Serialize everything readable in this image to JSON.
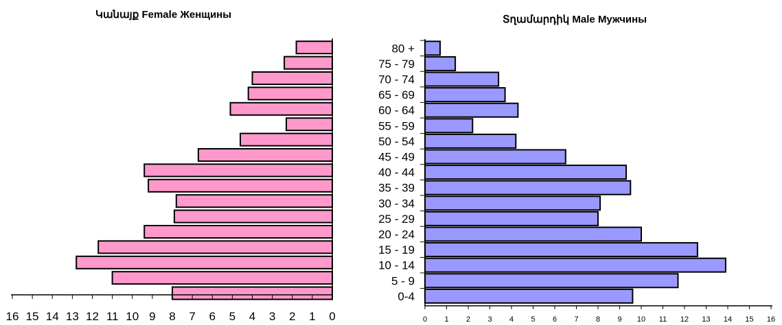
{
  "chart_data": [
    {
      "type": "bar",
      "orientation": "horizontal",
      "title": "Կանայք Female  Женщины",
      "categories": [
        "80 +",
        "75 - 79",
        "70 - 74",
        "65 - 69",
        "60 - 64",
        "55 - 59",
        "50 - 54",
        "45 - 49",
        "40 - 44",
        "35 - 39",
        "30 - 34",
        "25 - 29",
        "20 - 24",
        "15 - 19",
        "10 - 14",
        "5 - 9",
        "0-4"
      ],
      "values": [
        1.8,
        2.4,
        4.0,
        4.2,
        5.1,
        2.3,
        4.6,
        6.7,
        9.4,
        9.2,
        7.8,
        7.9,
        9.4,
        11.7,
        12.8,
        11.0,
        8.0
      ],
      "xlim": [
        0,
        16
      ],
      "x_direction": "reversed",
      "ticks": [
        "16",
        "15",
        "14",
        "13",
        "12",
        "11",
        "10",
        "9",
        "8",
        "7",
        "6",
        "5",
        "4",
        "3",
        "2",
        "1",
        "0"
      ],
      "bar_color": "#ff99cc"
    },
    {
      "type": "bar",
      "orientation": "horizontal",
      "title": "Տղամարդիկ Male  Мужчины",
      "categories": [
        "80 +",
        "75 - 79",
        "70 - 74",
        "65 - 69",
        "60 - 64",
        "55 - 59",
        "50 - 54",
        "45 - 49",
        "40 - 44",
        "35 - 39",
        "30 - 34",
        "25 - 29",
        "20 - 24",
        "15 - 19",
        "10 - 14",
        "5 - 9",
        "0-4"
      ],
      "values": [
        0.7,
        1.4,
        3.4,
        3.7,
        4.3,
        2.2,
        4.2,
        6.5,
        9.3,
        9.5,
        8.1,
        8.0,
        10.0,
        12.6,
        13.9,
        11.7,
        9.6
      ],
      "xlim": [
        0,
        16
      ],
      "ticks": [
        "0",
        "1",
        "2",
        "3",
        "4",
        "5",
        "6",
        "7",
        "8",
        "9",
        "10",
        "11",
        "12",
        "13",
        "14",
        "15",
        "16"
      ],
      "bar_color": "#9999ff"
    }
  ]
}
